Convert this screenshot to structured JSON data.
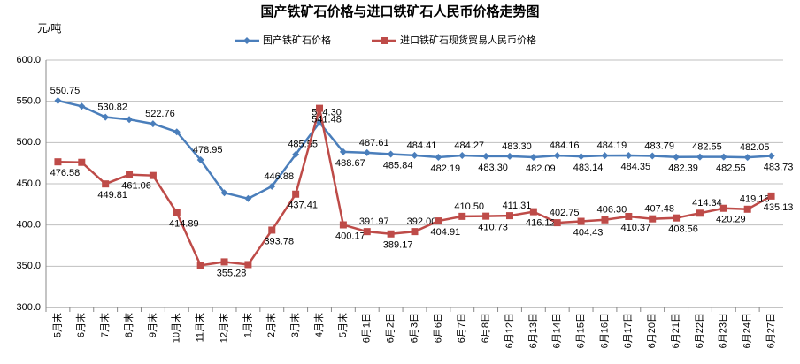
{
  "chart_data": {
    "type": "line",
    "title": "国产铁矿石价格与进口铁矿石人民币价格走势图",
    "y_label": "元/吨",
    "categories": [
      "5月末",
      "6月末",
      "7月末",
      "8月末",
      "9月末",
      "10月末",
      "11月末",
      "12月末",
      "1月末",
      "2月末",
      "3月末",
      "4月末",
      "5月末",
      "6月1日",
      "6月2日",
      "6月3日",
      "6月6日",
      "6月7日",
      "6月8日",
      "6月12日",
      "6月13日",
      "6月14日",
      "6月15日",
      "6月16日",
      "6月17日",
      "6月20日",
      "6月21日",
      "6月22日",
      "6月23日",
      "6月24日",
      "6月27日"
    ],
    "series": [
      {
        "name": "国产铁矿石价格",
        "color": "#4a7ebb",
        "marker": "diamond",
        "values": [
          550.75,
          544,
          530.82,
          528,
          522.76,
          513,
          478.95,
          439,
          432,
          446.88,
          485.55,
          524.3,
          488.67,
          487.61,
          485.84,
          484.41,
          482.19,
          484.27,
          483.3,
          483.3,
          482.09,
          484.16,
          483.14,
          484.19,
          484.35,
          483.79,
          482.39,
          482.55,
          482.55,
          482.05,
          483.73
        ],
        "value_labels": [
          "550.75",
          null,
          "530.82",
          null,
          "522.76",
          null,
          "478.95",
          null,
          null,
          "446.88",
          "485.55",
          "524.30",
          "488.67",
          "487.61",
          "485.84",
          "484.41",
          "482.19",
          "484.27",
          "483.30",
          "483.30",
          "482.09",
          "484.16",
          "483.14",
          "484.19",
          "484.35",
          "483.79",
          "482.39",
          "482.55",
          "482.55",
          "482.05",
          "483.73"
        ]
      },
      {
        "name": "进口铁矿石现货贸易人民币价格",
        "color": "#be4b48",
        "marker": "square",
        "values": [
          476.58,
          476,
          449.81,
          461.06,
          460,
          414.89,
          351,
          355.28,
          352,
          393.78,
          437.41,
          541.48,
          400.17,
          391.97,
          389.17,
          392.0,
          404.91,
          410.5,
          410.73,
          411.31,
          416.12,
          402.75,
          404.43,
          406.3,
          410.37,
          407.48,
          408.56,
          414.34,
          420.29,
          419.16,
          435.13
        ],
        "value_labels": [
          "476.58",
          null,
          "449.81",
          "461.06",
          null,
          "414.89",
          null,
          "355.28",
          null,
          "393.78",
          "437.41",
          "541.48",
          "400.17",
          "391.97",
          "389.17",
          "392.00",
          "404.91",
          "410.50",
          "410.73",
          "411.31",
          "416.12",
          "402.75",
          "404.43",
          "406.30",
          "410.37",
          "407.48",
          "408.56",
          "414.34",
          "420.29",
          "419.16",
          "435.13"
        ]
      }
    ],
    "ylim": [
      300,
      600
    ],
    "yticks": [
      {
        "value": 300,
        "label": "300.0"
      },
      {
        "value": 350,
        "label": "350.0"
      },
      {
        "value": 400,
        "label": "400.0"
      },
      {
        "value": 450,
        "label": "450.0"
      },
      {
        "value": 500,
        "label": "500.0"
      },
      {
        "value": 550,
        "label": "550.0"
      },
      {
        "value": 600,
        "label": "600.0"
      }
    ],
    "grid": true,
    "legend": "top"
  }
}
